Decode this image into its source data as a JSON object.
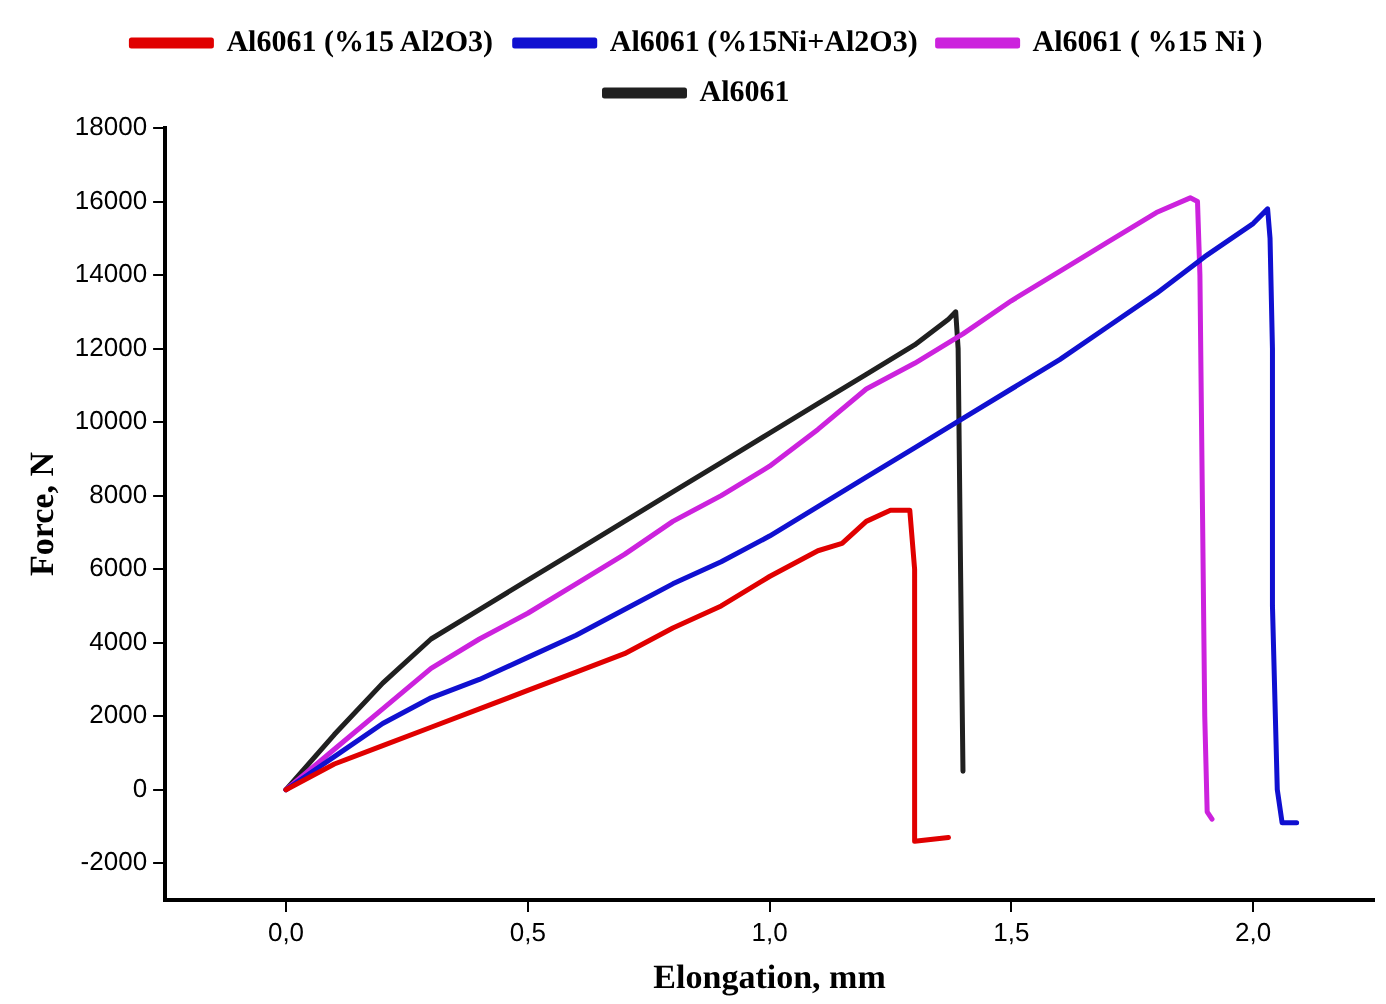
{
  "chart_data": {
    "type": "line",
    "xlabel": "Elongation, mm",
    "ylabel": "Force, N",
    "xlim": [
      -0.25,
      2.25
    ],
    "ylim": [
      -3000,
      18000
    ],
    "xticks": [
      {
        "value": 0,
        "label": "0,0"
      },
      {
        "value": 0.5,
        "label": "0,5"
      },
      {
        "value": 1,
        "label": "1,0"
      },
      {
        "value": 1.5,
        "label": "1,5"
      },
      {
        "value": 2,
        "label": "2,0"
      }
    ],
    "yticks": [
      -2000,
      0,
      2000,
      4000,
      6000,
      8000,
      10000,
      12000,
      14000,
      16000,
      18000
    ],
    "grid": false,
    "legend": "top",
    "marker": "none",
    "line_style": "solid",
    "series": [
      {
        "name": "Al6061 (%15 Al2O3)",
        "color": "#e00000",
        "x": [
          0,
          0.1,
          0.2,
          0.3,
          0.4,
          0.5,
          0.6,
          0.7,
          0.8,
          0.9,
          1.0,
          1.1,
          1.15,
          1.2,
          1.25,
          1.29,
          1.3,
          1.3,
          1.37
        ],
        "values": [
          0,
          700,
          1200,
          1700,
          2200,
          2700,
          3200,
          3700,
          4400,
          5000,
          5800,
          6500,
          6700,
          7300,
          7600,
          7600,
          6000,
          -1400,
          -1300
        ]
      },
      {
        "name": "Al6061 (%15Ni+Al2O3)",
        "color": "#1010d0",
        "x": [
          0,
          0.1,
          0.2,
          0.3,
          0.4,
          0.5,
          0.6,
          0.7,
          0.8,
          0.9,
          1.0,
          1.1,
          1.2,
          1.3,
          1.4,
          1.5,
          1.6,
          1.7,
          1.8,
          1.9,
          2.0,
          2.03,
          2.035,
          2.04,
          2.04,
          2.05,
          2.06,
          2.09
        ],
        "values": [
          0,
          900,
          1800,
          2500,
          3000,
          3600,
          4200,
          4900,
          5600,
          6200,
          6900,
          7700,
          8500,
          9300,
          10100,
          10900,
          11700,
          12600,
          13500,
          14500,
          15400,
          15800,
          15000,
          12000,
          5000,
          0,
          -900,
          -900
        ]
      },
      {
        "name": "Al6061 ( %15 Ni )",
        "color": "#cc22dd",
        "x": [
          0,
          0.1,
          0.2,
          0.3,
          0.4,
          0.5,
          0.6,
          0.7,
          0.8,
          0.9,
          1.0,
          1.1,
          1.2,
          1.3,
          1.4,
          1.5,
          1.6,
          1.7,
          1.8,
          1.87,
          1.885,
          1.89,
          1.9,
          1.905,
          1.915
        ],
        "values": [
          0,
          1100,
          2200,
          3300,
          4100,
          4800,
          5600,
          6400,
          7300,
          8000,
          8800,
          9800,
          10900,
          11600,
          12400,
          13300,
          14100,
          14900,
          15700,
          16100,
          16000,
          14000,
          2000,
          -600,
          -800
        ]
      },
      {
        "name": "Al6061",
        "color": "#202020",
        "x": [
          0,
          0.1,
          0.2,
          0.3,
          0.4,
          0.5,
          0.6,
          0.7,
          0.8,
          0.9,
          1.0,
          1.1,
          1.2,
          1.3,
          1.37,
          1.385,
          1.39,
          1.395,
          1.4
        ],
        "values": [
          0,
          1500,
          2900,
          4100,
          4900,
          5700,
          6500,
          7300,
          8100,
          8900,
          9700,
          10500,
          11300,
          12100,
          12800,
          13000,
          12000,
          6000,
          500
        ]
      }
    ]
  }
}
